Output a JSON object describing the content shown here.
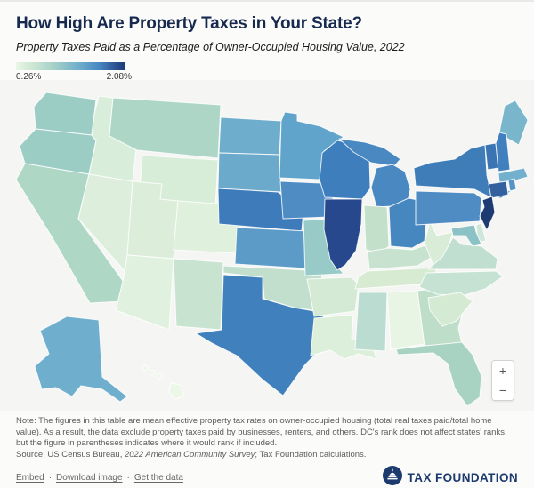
{
  "header": {
    "title": "How High Are Property Taxes in Your State?",
    "subtitle": "Property Taxes Paid as a Percentage of Owner-Occupied Housing Value, 2022"
  },
  "legend": {
    "min_label": "0.26%",
    "max_label": "2.08%"
  },
  "map": {
    "zoom_in_label": "+",
    "zoom_out_label": "−"
  },
  "chart_data": {
    "type": "choropleth",
    "title": "How High Are Property Taxes in Your State?",
    "subtitle": "Property Taxes Paid as a Percentage of Owner-Occupied Housing Value, 2022",
    "legend": {
      "min": "0.26%",
      "max": "2.08%",
      "scale": "light green (low) to dark navy blue (high)"
    },
    "states": [
      {
        "id": "WA",
        "fill": "#9ccdc5"
      },
      {
        "id": "OR",
        "fill": "#9ccdc5"
      },
      {
        "id": "CA",
        "fill": "#aed7c6"
      },
      {
        "id": "ID",
        "fill": "#d9eeda"
      },
      {
        "id": "MT",
        "fill": "#aed6c7"
      },
      {
        "id": "WY",
        "fill": "#d8edd7"
      },
      {
        "id": "NV",
        "fill": "#ddefdc"
      },
      {
        "id": "UT",
        "fill": "#dceeda"
      },
      {
        "id": "CO",
        "fill": "#dff0dd"
      },
      {
        "id": "AZ",
        "fill": "#e0f1df"
      },
      {
        "id": "NM",
        "fill": "#c8e3d0"
      },
      {
        "id": "ND",
        "fill": "#6fadcd"
      },
      {
        "id": "SD",
        "fill": "#6caacc"
      },
      {
        "id": "NE",
        "fill": "#3d7bba"
      },
      {
        "id": "KS",
        "fill": "#5c9bc8"
      },
      {
        "id": "OK",
        "fill": "#c1dfcc"
      },
      {
        "id": "TX",
        "fill": "#3f80bd"
      },
      {
        "id": "MN",
        "fill": "#61a4cb"
      },
      {
        "id": "IA",
        "fill": "#4e8cc3"
      },
      {
        "id": "MO",
        "fill": "#98cbc7"
      },
      {
        "id": "AR",
        "fill": "#d4ead5"
      },
      {
        "id": "LA",
        "fill": "#dcefdb"
      },
      {
        "id": "WI",
        "fill": "#3e7ebc"
      },
      {
        "id": "IL",
        "fill": "#28488e"
      },
      {
        "id": "MI",
        "fill": "#4a88c1"
      },
      {
        "id": "IN",
        "fill": "#c3e0ca"
      },
      {
        "id": "OH",
        "fill": "#4787c0"
      },
      {
        "id": "KY",
        "fill": "#c7e2cf"
      },
      {
        "id": "TN",
        "fill": "#d7ebd3"
      },
      {
        "id": "MS",
        "fill": "#badcd1"
      },
      {
        "id": "AL",
        "fill": "#e9f5e4"
      },
      {
        "id": "GA",
        "fill": "#bedec9"
      },
      {
        "id": "FL",
        "fill": "#a8d3c3"
      },
      {
        "id": "WV",
        "fill": "#d8ecd7"
      },
      {
        "id": "VA",
        "fill": "#c1dfd0"
      },
      {
        "id": "NC",
        "fill": "#c6e2d3"
      },
      {
        "id": "SC",
        "fill": "#d4ead3"
      },
      {
        "id": "PA",
        "fill": "#4f8cc3"
      },
      {
        "id": "NY",
        "fill": "#3f7db9"
      },
      {
        "id": "ME",
        "fill": "#79b6cc"
      },
      {
        "id": "VT",
        "fill": "#3b74b3"
      },
      {
        "id": "NH",
        "fill": "#4080be"
      },
      {
        "id": "MA",
        "fill": "#72b0cd"
      },
      {
        "id": "CT",
        "fill": "#33609f"
      },
      {
        "id": "RI",
        "fill": "#5794c5"
      },
      {
        "id": "NJ",
        "fill": "#1e3a72"
      },
      {
        "id": "DE",
        "fill": "#cfe7da"
      },
      {
        "id": "MD",
        "fill": "#8cc2c5"
      },
      {
        "id": "AK",
        "fill": "#6fafcd"
      },
      {
        "id": "HI",
        "fill": "#edf7e7"
      }
    ]
  },
  "footer": {
    "note": "Note: The figures in this table are mean effective property tax rates on owner-occupied housing (total real taxes paid/total home value). As a result, the data exclude property taxes paid by businesses, renters, and others. DC's rank does not affect states' ranks, but the figure in parentheses indicates where it would rank if included.",
    "source_prefix": "Source: US Census Bureau, ",
    "source_italic": "2022 American Community Survey",
    "source_suffix": "; Tax Foundation calculations.",
    "links": [
      "Embed",
      "Download image",
      "Get the data"
    ],
    "logo_text": "TAX FOUNDATION"
  }
}
